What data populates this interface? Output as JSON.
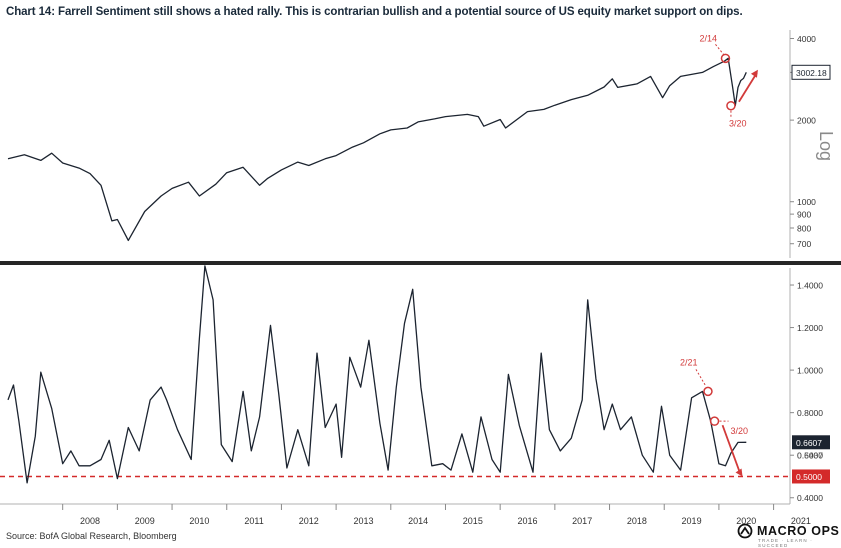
{
  "title": "Chart 14: Farrell Sentiment still shows a hated rally. This is contrarian bullish and a potential source of US equity market support on dips.",
  "source": "Source: BofA Global Research, Bloomberg",
  "brand": {
    "name": "MACRO OPS",
    "tagline": "TRADE · LEARN · SUCCEED"
  },
  "colors": {
    "line": "#1c2430",
    "annotation": "#d23a3a",
    "marker_fill": "#d42a2a",
    "marker_dark": "#1c2430"
  },
  "chart_data": [
    {
      "type": "line",
      "panel": "top",
      "scale": "log",
      "ylabel": "Log",
      "ylim": [
        620,
        4300
      ],
      "y_ticks": [
        "4000",
        "3000",
        "2000",
        "1000",
        "900",
        "800",
        "700"
      ],
      "y_tick_values": [
        4000,
        3000,
        2000,
        1000,
        900,
        800,
        700
      ],
      "last_value_label": "3002.18",
      "last_value": 3002.18,
      "x": [
        2007.0,
        2007.3,
        2007.6,
        2007.8,
        2008.0,
        2008.3,
        2008.5,
        2008.7,
        2008.9,
        2009.0,
        2009.2,
        2009.5,
        2009.8,
        2010.0,
        2010.3,
        2010.5,
        2010.8,
        2011.0,
        2011.3,
        2011.6,
        2011.75,
        2012.0,
        2012.3,
        2012.5,
        2012.8,
        2013.0,
        2013.3,
        2013.5,
        2013.8,
        2014.0,
        2014.3,
        2014.5,
        2014.8,
        2015.0,
        2015.4,
        2015.6,
        2015.7,
        2016.0,
        2016.1,
        2016.5,
        2016.8,
        2017.0,
        2017.3,
        2017.6,
        2017.9,
        2018.05,
        2018.15,
        2018.5,
        2018.75,
        2018.97,
        2019.1,
        2019.3,
        2019.5,
        2019.7,
        2019.9,
        2020.1,
        2020.17,
        2020.25,
        2020.3,
        2020.35,
        2020.4,
        2020.45,
        2020.5
      ],
      "values": [
        1440,
        1490,
        1420,
        1510,
        1390,
        1330,
        1270,
        1150,
        850,
        860,
        720,
        920,
        1050,
        1120,
        1180,
        1050,
        1160,
        1280,
        1340,
        1150,
        1220,
        1310,
        1400,
        1360,
        1440,
        1480,
        1590,
        1650,
        1780,
        1840,
        1870,
        1970,
        2020,
        2060,
        2100,
        2060,
        1900,
        2010,
        1870,
        2150,
        2190,
        2270,
        2380,
        2470,
        2650,
        2840,
        2640,
        2720,
        2900,
        2420,
        2680,
        2900,
        2950,
        3000,
        3150,
        3300,
        3380,
        2650,
        2260,
        2640,
        2800,
        2850,
        3002.18
      ],
      "annotations": [
        {
          "label": "2/14",
          "x": 2020.12,
          "value": 3380
        },
        {
          "label": "3/20",
          "x": 2020.22,
          "value": 2260
        }
      ]
    },
    {
      "type": "line",
      "panel": "bottom",
      "ylim": [
        0.38,
        1.48
      ],
      "y_ticks": [
        "1.4000",
        "1.2000",
        "1.0000",
        "0.8000",
        "0.6000",
        "0.4000"
      ],
      "y_tick_values": [
        1.4,
        1.2,
        1.0,
        0.8,
        0.6,
        0.4
      ],
      "last_value_label": "0.6607",
      "last_value": 0.6607,
      "threshold_label": "0.5000",
      "threshold": 0.5,
      "hidden_label": "0.5437",
      "x_labels": [
        "2008",
        "2009",
        "2010",
        "2011",
        "2012",
        "2013",
        "2014",
        "2015",
        "2016",
        "2017",
        "2018",
        "2019",
        "2020",
        "2021"
      ],
      "x_label_values": [
        2008,
        2009,
        2010,
        2011,
        2012,
        2013,
        2014,
        2015,
        2016,
        2017,
        2018,
        2019,
        2020,
        2021
      ],
      "x": [
        2007.0,
        2007.1,
        2007.2,
        2007.35,
        2007.5,
        2007.6,
        2007.8,
        2008.0,
        2008.15,
        2008.3,
        2008.5,
        2008.7,
        2008.85,
        2009.0,
        2009.2,
        2009.4,
        2009.6,
        2009.8,
        2009.9,
        2010.1,
        2010.35,
        2010.5,
        2010.6,
        2010.75,
        2010.9,
        2011.1,
        2011.3,
        2011.45,
        2011.6,
        2011.8,
        2011.95,
        2012.1,
        2012.3,
        2012.5,
        2012.65,
        2012.8,
        2013.0,
        2013.1,
        2013.25,
        2013.45,
        2013.6,
        2013.8,
        2013.95,
        2014.1,
        2014.25,
        2014.4,
        2014.55,
        2014.75,
        2014.95,
        2015.1,
        2015.3,
        2015.5,
        2015.65,
        2015.85,
        2016.0,
        2016.15,
        2016.35,
        2016.6,
        2016.75,
        2016.9,
        2017.1,
        2017.3,
        2017.5,
        2017.6,
        2017.75,
        2017.9,
        2018.05,
        2018.2,
        2018.4,
        2018.6,
        2018.8,
        2018.95,
        2019.1,
        2019.3,
        2019.5,
        2019.7,
        2019.85,
        2020.0,
        2020.12,
        2020.22,
        2020.35,
        2020.5
      ],
      "values": [
        0.86,
        0.93,
        0.76,
        0.47,
        0.69,
        0.99,
        0.82,
        0.56,
        0.62,
        0.55,
        0.55,
        0.58,
        0.67,
        0.49,
        0.73,
        0.62,
        0.86,
        0.92,
        0.86,
        0.72,
        0.58,
        1.15,
        1.49,
        1.33,
        0.65,
        0.57,
        0.9,
        0.62,
        0.78,
        1.21,
        0.89,
        0.54,
        0.72,
        0.55,
        1.08,
        0.73,
        0.84,
        0.59,
        1.06,
        0.92,
        1.14,
        0.75,
        0.53,
        0.92,
        1.22,
        1.38,
        0.92,
        0.55,
        0.56,
        0.53,
        0.7,
        0.52,
        0.78,
        0.58,
        0.52,
        0.98,
        0.74,
        0.52,
        1.08,
        0.72,
        0.62,
        0.68,
        0.86,
        1.33,
        0.96,
        0.72,
        0.84,
        0.72,
        0.78,
        0.6,
        0.52,
        0.83,
        0.6,
        0.53,
        0.87,
        0.9,
        0.76,
        0.56,
        0.55,
        0.61,
        0.66,
        0.6607
      ],
      "annotations": [
        {
          "label": "2/21",
          "x": 2019.8,
          "value": 0.9
        },
        {
          "label": "3/20",
          "x": 2019.92,
          "value": 0.76
        }
      ]
    }
  ]
}
